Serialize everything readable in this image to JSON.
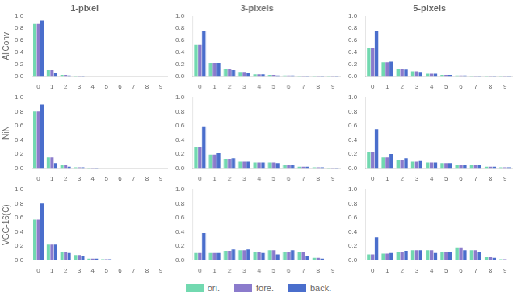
{
  "chart_data": [
    {
      "type": "bar",
      "title": "1-pixel",
      "ylabel": "AllConv",
      "categories": [
        "0",
        "1",
        "2",
        "3",
        "4",
        "5",
        "6",
        "7",
        "8",
        "9"
      ],
      "series": [
        {
          "name": "ori.",
          "color": "#72d9b0",
          "values": [
            0.87,
            0.1,
            0.02,
            0.005,
            0.0,
            0.0,
            0.0,
            0.0,
            0.0,
            0.0
          ]
        },
        {
          "name": "fore.",
          "color": "#8b7bcc",
          "values": [
            0.87,
            0.1,
            0.02,
            0.005,
            0.0,
            0.0,
            0.0,
            0.0,
            0.0,
            0.0
          ]
        },
        {
          "name": "back.",
          "color": "#4a6ecc",
          "values": [
            0.93,
            0.05,
            0.01,
            0.005,
            0.0,
            0.0,
            0.0,
            0.0,
            0.0,
            0.0
          ]
        }
      ],
      "ylim": [
        0.0,
        1.0
      ],
      "yticks": [
        {
          "value": 0.0,
          "label": "0.0"
        },
        0.2,
        0.4,
        0.6,
        0.8,
        {
          "value": 1.0,
          "label": "1.0"
        }
      ],
      "grid": false
    },
    {
      "type": "bar",
      "title": "3-pixels",
      "categories": [
        "0",
        "1",
        "2",
        "3",
        "4",
        "5",
        "6",
        "7",
        "8",
        "9"
      ],
      "series": [
        {
          "name": "ori.",
          "color": "#72d9b0",
          "values": [
            0.52,
            0.22,
            0.12,
            0.07,
            0.03,
            0.02,
            0.01,
            0.005,
            0.005,
            0.005
          ]
        },
        {
          "name": "fore.",
          "color": "#8b7bcc",
          "values": [
            0.52,
            0.22,
            0.12,
            0.07,
            0.03,
            0.02,
            0.01,
            0.005,
            0.005,
            0.005
          ]
        },
        {
          "name": "back.",
          "color": "#4a6ecc",
          "values": [
            0.75,
            0.22,
            0.1,
            0.06,
            0.03,
            0.01,
            0.01,
            0.005,
            0.005,
            0.005
          ]
        }
      ],
      "ylim": [
        0.0,
        1.0
      ],
      "yticks": [
        {
          "value": 0.0,
          "label": "0.0"
        },
        0.2,
        0.4,
        0.6,
        0.8,
        {
          "value": 1.0,
          "label": "1.0"
        }
      ],
      "grid": false
    },
    {
      "type": "bar",
      "title": "5-pixels",
      "categories": [
        "0",
        "1",
        "2",
        "3",
        "4",
        "5",
        "6",
        "7",
        "8",
        "9"
      ],
      "series": [
        {
          "name": "ori.",
          "color": "#72d9b0",
          "values": [
            0.47,
            0.23,
            0.12,
            0.08,
            0.04,
            0.02,
            0.01,
            0.005,
            0.005,
            0.005
          ]
        },
        {
          "name": "fore.",
          "color": "#8b7bcc",
          "values": [
            0.47,
            0.23,
            0.12,
            0.08,
            0.04,
            0.02,
            0.01,
            0.005,
            0.005,
            0.005
          ]
        },
        {
          "name": "back.",
          "color": "#4a6ecc",
          "values": [
            0.75,
            0.24,
            0.11,
            0.07,
            0.04,
            0.02,
            0.01,
            0.005,
            0.005,
            0.005
          ]
        }
      ],
      "ylim": [
        0.0,
        1.0
      ],
      "yticks": [
        {
          "value": 0.0,
          "label": "0.0"
        },
        0.2,
        0.4,
        0.6,
        0.8,
        {
          "value": 1.0,
          "label": "1.0"
        }
      ],
      "grid": false
    },
    {
      "type": "bar",
      "ylabel": "NiN",
      "categories": [
        "0",
        "1",
        "2",
        "3",
        "4",
        "5",
        "6",
        "7",
        "8",
        "9"
      ],
      "series": [
        {
          "name": "ori.",
          "color": "#72d9b0",
          "values": [
            0.8,
            0.15,
            0.04,
            0.01,
            0.005,
            0.0,
            0.0,
            0.0,
            0.0,
            0.0
          ]
        },
        {
          "name": "fore.",
          "color": "#8b7bcc",
          "values": [
            0.8,
            0.15,
            0.04,
            0.01,
            0.005,
            0.0,
            0.0,
            0.0,
            0.0,
            0.0
          ]
        },
        {
          "name": "back.",
          "color": "#4a6ecc",
          "values": [
            0.9,
            0.07,
            0.02,
            0.01,
            0.005,
            0.0,
            0.0,
            0.0,
            0.0,
            0.0
          ]
        }
      ],
      "ylim": [
        0.0,
        1.0
      ],
      "yticks": [
        {
          "value": 0.0,
          "label": "0.0"
        },
        0.2,
        0.4,
        0.6,
        0.8,
        {
          "value": 1.0,
          "label": "1.0"
        }
      ],
      "grid": false
    },
    {
      "type": "bar",
      "categories": [
        "0",
        "1",
        "2",
        "3",
        "4",
        "5",
        "6",
        "7",
        "8",
        "9"
      ],
      "series": [
        {
          "name": "ori.",
          "color": "#72d9b0",
          "values": [
            0.3,
            0.19,
            0.13,
            0.09,
            0.08,
            0.08,
            0.04,
            0.02,
            0.01,
            0.005
          ]
        },
        {
          "name": "fore.",
          "color": "#8b7bcc",
          "values": [
            0.3,
            0.19,
            0.13,
            0.09,
            0.08,
            0.08,
            0.04,
            0.02,
            0.01,
            0.005
          ]
        },
        {
          "name": "back.",
          "color": "#4a6ecc",
          "values": [
            0.59,
            0.21,
            0.14,
            0.09,
            0.08,
            0.07,
            0.04,
            0.02,
            0.01,
            0.005
          ]
        }
      ],
      "ylim": [
        0.0,
        1.0
      ],
      "yticks": [
        {
          "value": 0.0,
          "label": "0.0"
        },
        0.2,
        0.4,
        0.6,
        0.8,
        {
          "value": 1.0,
          "label": "1.0"
        }
      ],
      "grid": false
    },
    {
      "type": "bar",
      "categories": [
        "0",
        "1",
        "2",
        "3",
        "4",
        "5",
        "6",
        "7",
        "8",
        "9"
      ],
      "series": [
        {
          "name": "ori.",
          "color": "#72d9b0",
          "values": [
            0.23,
            0.15,
            0.12,
            0.09,
            0.08,
            0.07,
            0.05,
            0.04,
            0.02,
            0.01
          ]
        },
        {
          "name": "fore.",
          "color": "#8b7bcc",
          "values": [
            0.23,
            0.15,
            0.12,
            0.09,
            0.08,
            0.07,
            0.05,
            0.04,
            0.02,
            0.01
          ]
        },
        {
          "name": "back.",
          "color": "#4a6ecc",
          "values": [
            0.55,
            0.2,
            0.14,
            0.1,
            0.08,
            0.07,
            0.05,
            0.04,
            0.02,
            0.01
          ]
        }
      ],
      "ylim": [
        0.0,
        1.0
      ],
      "yticks": [
        {
          "value": 0.0,
          "label": "0.0"
        },
        0.2,
        0.4,
        0.6,
        0.8,
        {
          "value": 1.0,
          "label": "1.0"
        }
      ],
      "grid": false
    },
    {
      "type": "bar",
      "ylabel": "VGG-16(C)",
      "categories": [
        "0",
        "1",
        "2",
        "3",
        "4",
        "5",
        "6",
        "7",
        "8",
        "9"
      ],
      "series": [
        {
          "name": "ori.",
          "color": "#72d9b0",
          "values": [
            0.57,
            0.22,
            0.11,
            0.07,
            0.02,
            0.01,
            0.005,
            0.005,
            0.0,
            0.0
          ]
        },
        {
          "name": "fore.",
          "color": "#8b7bcc",
          "values": [
            0.57,
            0.22,
            0.11,
            0.07,
            0.02,
            0.01,
            0.005,
            0.005,
            0.0,
            0.0
          ]
        },
        {
          "name": "back.",
          "color": "#4a6ecc",
          "values": [
            0.8,
            0.22,
            0.1,
            0.06,
            0.02,
            0.01,
            0.005,
            0.005,
            0.0,
            0.0
          ]
        }
      ],
      "ylim": [
        0.0,
        1.0
      ],
      "yticks": [
        {
          "value": 0.0,
          "label": "0.0"
        },
        0.2,
        0.4,
        0.6,
        0.8,
        {
          "value": 1.0,
          "label": "1.0"
        }
      ],
      "grid": false
    },
    {
      "type": "bar",
      "legend": "bottom",
      "categories": [
        "0",
        "1",
        "2",
        "3",
        "4",
        "5",
        "6",
        "7",
        "8",
        "9"
      ],
      "series": [
        {
          "name": "ori.",
          "color": "#72d9b0",
          "values": [
            0.1,
            0.1,
            0.13,
            0.14,
            0.12,
            0.14,
            0.11,
            0.12,
            0.03,
            0.005
          ]
        },
        {
          "name": "fore.",
          "color": "#8b7bcc",
          "values": [
            0.1,
            0.1,
            0.13,
            0.14,
            0.12,
            0.14,
            0.11,
            0.12,
            0.03,
            0.005
          ]
        },
        {
          "name": "back.",
          "color": "#4a6ecc",
          "values": [
            0.38,
            0.1,
            0.15,
            0.15,
            0.1,
            0.08,
            0.14,
            0.05,
            0.02,
            0.005
          ]
        }
      ],
      "ylim": [
        0.0,
        1.0
      ],
      "yticks": [
        {
          "value": 0.0,
          "label": "0.0"
        },
        0.2,
        0.4,
        0.6,
        0.8,
        {
          "value": 1.0,
          "label": "1.0"
        }
      ],
      "grid": false
    },
    {
      "type": "bar",
      "categories": [
        "0",
        "1",
        "2",
        "3",
        "4",
        "5",
        "6",
        "7",
        "8",
        "9"
      ],
      "series": [
        {
          "name": "ori.",
          "color": "#72d9b0",
          "values": [
            0.08,
            0.09,
            0.11,
            0.14,
            0.14,
            0.12,
            0.18,
            0.14,
            0.04,
            0.01
          ]
        },
        {
          "name": "fore.",
          "color": "#8b7bcc",
          "values": [
            0.08,
            0.09,
            0.11,
            0.14,
            0.14,
            0.12,
            0.18,
            0.14,
            0.04,
            0.01
          ]
        },
        {
          "name": "back.",
          "color": "#4a6ecc",
          "values": [
            0.32,
            0.1,
            0.13,
            0.14,
            0.1,
            0.11,
            0.14,
            0.12,
            0.03,
            0.005
          ]
        }
      ],
      "ylim": [
        0.0,
        1.0
      ],
      "yticks": [
        {
          "value": 0.0,
          "label": "0.0"
        },
        0.2,
        0.4,
        0.6,
        0.8,
        {
          "value": 1.0,
          "label": "1.0"
        }
      ],
      "grid": false
    }
  ]
}
